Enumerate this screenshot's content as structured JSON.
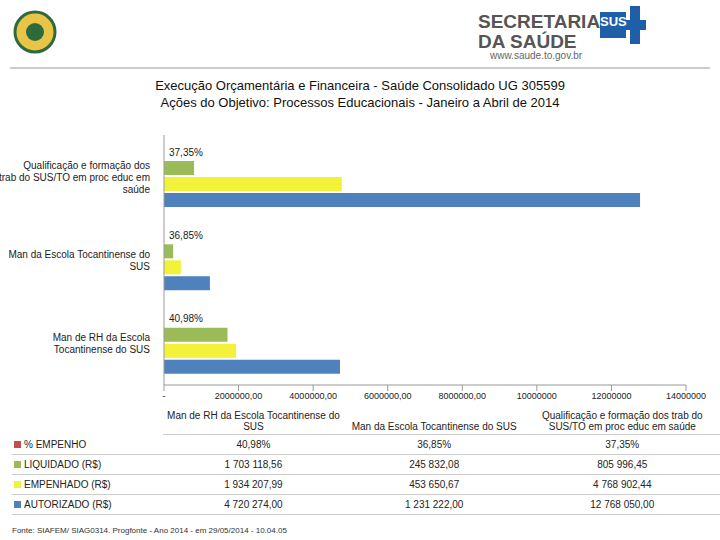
{
  "header": {
    "org": "SECRETARIA DA SAÚDE",
    "url": "www.saude.to.gov.br",
    "sus": "SUS"
  },
  "source": "Fonte: SIAFEM/ SIAG0314. Progfonte - Ano 2014 - em 29/05/2014 - 10.04.05",
  "chart_data": {
    "type": "bar",
    "orientation": "horizontal",
    "title": "Execução Orçamentária e Financeira - Saúde Consolidado UG 305599",
    "subtitle": "Ações do Objetivo: Processos Educacionais - Janeiro a Abril de 2014",
    "categories": [
      "Man de RH da Escola Tocantinense do SUS",
      "Man da Escola Tocantinense do SUS",
      "Qualificação e formação dos trab do SUS/TO em proc educ em saúde"
    ],
    "series": [
      {
        "name": "% EMPENHO",
        "color": "#c0504d",
        "values": [
          40.98,
          36.85,
          37.35
        ],
        "value_labels": [
          "40,98%",
          "36,85%",
          "37,35%"
        ],
        "data_labels": true
      },
      {
        "name": "LIQUIDADO (R$)",
        "color": "#9bbb59",
        "values": [
          1703118.56,
          245832.08,
          805996.45
        ],
        "value_labels": [
          "1 703 118,56",
          "245 832,08",
          "805 996,45"
        ]
      },
      {
        "name": "EMPENHADO (R$)",
        "color": "#f2f23a",
        "values": [
          1934207.99,
          453650.67,
          4768902.44
        ],
        "value_labels": [
          "1 934 207,99",
          "453 650,67",
          "4 768 902,44"
        ]
      },
      {
        "name": "AUTORIZADO (R$)",
        "color": "#4f81bd",
        "values": [
          4720274.0,
          1231222.0,
          12768050.0
        ],
        "value_labels": [
          "4 720 274,00",
          "1 231 222,00",
          "12 768 050,00"
        ]
      }
    ],
    "xlim": [
      0,
      14000000
    ],
    "xticks": [
      {
        "value": 0,
        "label": "-"
      },
      {
        "value": 2000000,
        "label": "2000000,00"
      },
      {
        "value": 4000000,
        "label": "4000000,00"
      },
      {
        "value": 6000000,
        "label": "6000000,00"
      },
      {
        "value": 8000000,
        "label": "8000000,00"
      },
      10000000,
      12000000,
      14000000
    ],
    "grid": false
  }
}
